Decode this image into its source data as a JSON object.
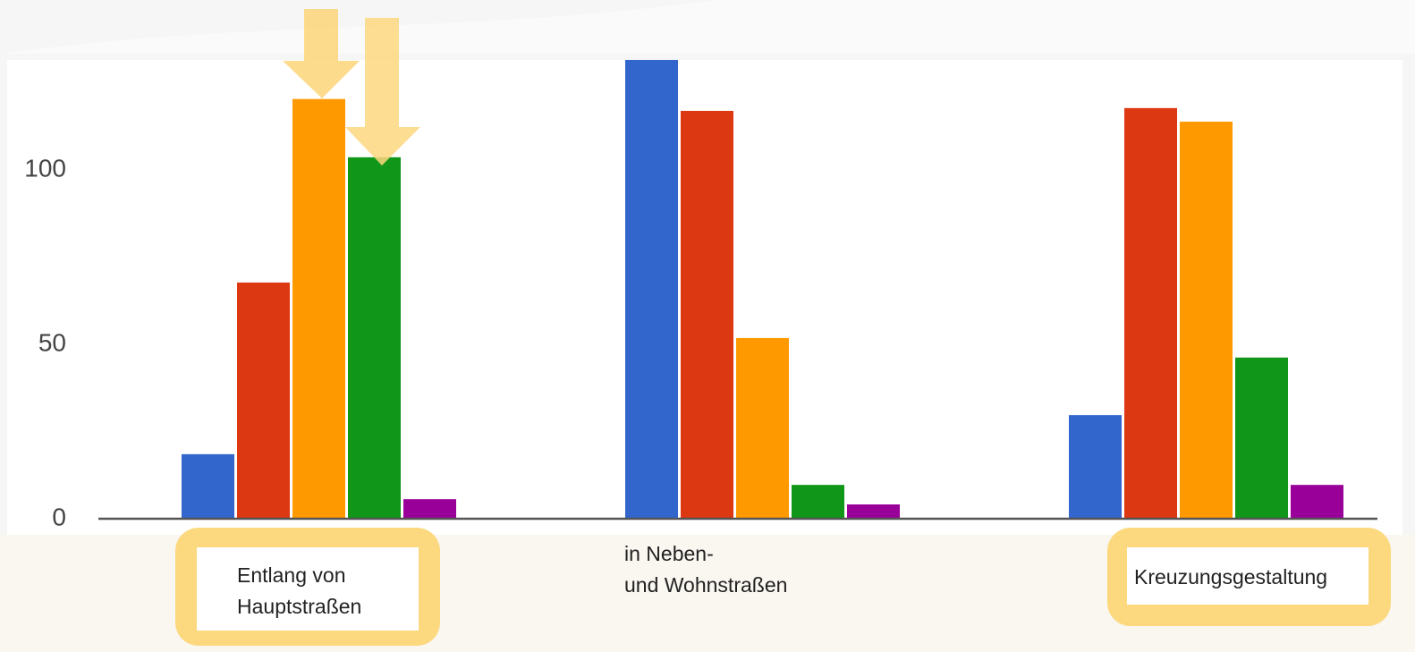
{
  "chart_data": {
    "type": "bar",
    "categories": [
      "Entlang von\nHauptstraßen",
      "in Neben-\nund Wohnstraßen",
      "Kreuzungsgestaltung"
    ],
    "series": [
      {
        "color": "#3366cc",
        "values": [
          18.5,
          132,
          29.7
        ]
      },
      {
        "color": "#dc3912",
        "values": [
          67.7,
          116.9,
          117.7
        ]
      },
      {
        "color": "#ff9900",
        "values": [
          120.3,
          51.8,
          113.8
        ]
      },
      {
        "color": "#109618",
        "values": [
          103.6,
          9.7,
          46.2
        ]
      },
      {
        "color": "#990099",
        "values": [
          5.6,
          4.1,
          9.7
        ]
      }
    ],
    "ylim": [
      0,
      131.5
    ],
    "yticks": [
      0,
      50,
      100
    ],
    "minor_yticks": [
      25,
      75,
      125
    ],
    "grid": true
  }
}
